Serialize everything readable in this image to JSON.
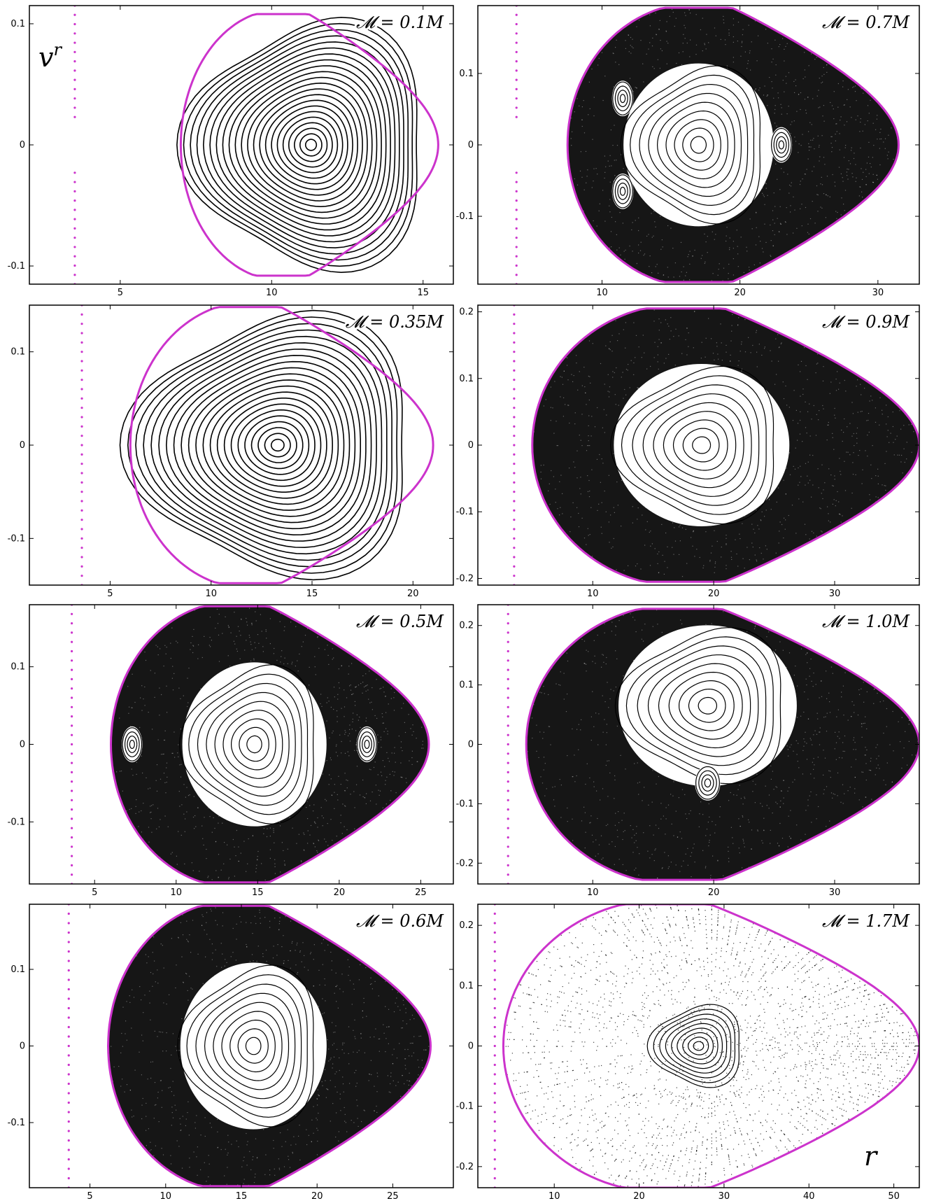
{
  "figure": {
    "y_axis_symbol": "v",
    "y_axis_superscript": "r",
    "x_axis_symbol": "r",
    "colors": {
      "boundary": "#cc33cc",
      "points": "#000000",
      "frame": "#000000"
    }
  },
  "chart_data": [
    {
      "type": "scatter",
      "label": "𝓜 = 0.1M",
      "mass": 0.1,
      "xlim": [
        2.0,
        16.0
      ],
      "ylim": [
        -0.115,
        0.115
      ],
      "xticks": [
        5,
        10,
        15
      ],
      "xtick_labels": [
        "5",
        "10",
        "15"
      ],
      "yticks": [
        -0.1,
        0,
        0.1
      ],
      "ytick_labels": [
        "-0.1",
        "0",
        "0.1"
      ],
      "boundary": {
        "r_min": 7.0,
        "r_max": 15.5,
        "vr_max": 0.108,
        "vr_min": -0.108
      },
      "horizon_dots_r": 3.5,
      "island_centers": [
        [
          11.3,
          0.0
        ]
      ],
      "chaotic": false
    },
    {
      "type": "scatter",
      "label": "𝓜 = 0.7M",
      "mass": 0.7,
      "xlim": [
        1.0,
        33.0
      ],
      "ylim": [
        -0.195,
        0.195
      ],
      "xticks": [
        10,
        20,
        30
      ],
      "xtick_labels": [
        "10",
        "20",
        "30"
      ],
      "yticks": [
        -0.1,
        0,
        0.1
      ],
      "ytick_labels": [
        "-0.1",
        "0",
        "0.1"
      ],
      "boundary": {
        "r_min": 7.5,
        "r_max": 31.5,
        "vr_max": 0.192,
        "vr_min": -0.192
      },
      "horizon_dots_r": 3.8,
      "island_centers": [
        [
          17.0,
          0.0
        ],
        [
          23.0,
          0.0
        ],
        [
          11.5,
          0.065
        ],
        [
          11.5,
          -0.065
        ]
      ],
      "chaotic": true
    },
    {
      "type": "scatter",
      "label": "𝓜 = 0.35M",
      "mass": 0.35,
      "xlim": [
        1.0,
        22.0
      ],
      "ylim": [
        -0.15,
        0.15
      ],
      "xticks": [
        5,
        10,
        15,
        20
      ],
      "xtick_labels": [
        "5",
        "10",
        "15",
        "20"
      ],
      "yticks": [
        -0.1,
        0,
        0.1
      ],
      "ytick_labels": [
        "-0.1",
        "0",
        "0.1"
      ],
      "boundary": {
        "r_min": 6.0,
        "r_max": 21.0,
        "vr_max": 0.148,
        "vr_min": -0.148
      },
      "horizon_dots_r": 3.6,
      "island_centers": [
        [
          13.3,
          0.0
        ]
      ],
      "chaotic": false
    },
    {
      "type": "scatter",
      "label": "𝓜 = 0.9M",
      "mass": 0.9,
      "xlim": [
        0.5,
        37.0
      ],
      "ylim": [
        -0.21,
        0.21
      ],
      "xticks": [
        10,
        20,
        30
      ],
      "xtick_labels": [
        "10",
        "20",
        "30"
      ],
      "yticks": [
        -0.2,
        -0.1,
        0,
        0.1,
        0.2
      ],
      "ytick_labels": [
        "-0.2",
        "-0.1",
        "0",
        "0.1",
        "0.2"
      ],
      "boundary": {
        "r_min": 5.0,
        "r_max": 37.0,
        "vr_max": 0.205,
        "vr_min": -0.205
      },
      "horizon_dots_r": 3.5,
      "island_centers": [
        [
          19.0,
          0.0
        ]
      ],
      "chaotic": true
    },
    {
      "type": "scatter",
      "label": "𝓜 = 0.5M",
      "mass": 0.5,
      "xlim": [
        1.0,
        27.0
      ],
      "ylim": [
        -0.18,
        0.18
      ],
      "xticks": [
        5,
        10,
        15,
        20,
        25
      ],
      "xtick_labels": [
        "5",
        "10",
        "15",
        "20",
        "25"
      ],
      "yticks": [
        -0.1,
        0,
        0.1
      ],
      "ytick_labels": [
        "-0.1",
        "0",
        "0.1"
      ],
      "boundary": {
        "r_min": 6.0,
        "r_max": 25.5,
        "vr_max": 0.178,
        "vr_min": -0.178
      },
      "horizon_dots_r": 3.6,
      "island_centers": [
        [
          14.8,
          0.0
        ],
        [
          21.7,
          0.0
        ],
        [
          7.3,
          0.0
        ]
      ],
      "chaotic": true
    },
    {
      "type": "scatter",
      "label": "𝓜 = 1.0M",
      "mass": 1.0,
      "xlim": [
        0.5,
        37.0
      ],
      "ylim": [
        -0.235,
        0.235
      ],
      "xticks": [
        10,
        20,
        30
      ],
      "xtick_labels": [
        "10",
        "20",
        "30"
      ],
      "yticks": [
        -0.2,
        -0.1,
        0,
        0.1,
        0.2
      ],
      "ytick_labels": [
        "-0.2",
        "-0.1",
        "0",
        "0.1",
        "0.2"
      ],
      "boundary": {
        "r_min": 4.5,
        "r_max": 37.0,
        "vr_max": 0.228,
        "vr_min": -0.228
      },
      "horizon_dots_r": 3.0,
      "island_centers": [
        [
          19.5,
          0.065
        ],
        [
          19.5,
          -0.065
        ]
      ],
      "chaotic": true
    },
    {
      "type": "scatter",
      "label": "𝓜 = 0.6M",
      "mass": 0.6,
      "xlim": [
        1.0,
        29.0
      ],
      "ylim": [
        -0.185,
        0.185
      ],
      "xticks": [
        5,
        10,
        15,
        20,
        25
      ],
      "xtick_labels": [
        "5",
        "10",
        "15",
        "20",
        "25"
      ],
      "yticks": [
        -0.1,
        0,
        0.1
      ],
      "ytick_labels": [
        "-0.1",
        "0",
        "0.1"
      ],
      "boundary": {
        "r_min": 6.2,
        "r_max": 27.5,
        "vr_max": 0.183,
        "vr_min": -0.183
      },
      "horizon_dots_r": 3.6,
      "island_centers": [
        [
          15.8,
          0.0
        ]
      ],
      "chaotic": true
    },
    {
      "type": "scatter",
      "label": "𝓜 = 1.7M",
      "mass": 1.7,
      "xlim": [
        1.0,
        53.0
      ],
      "ylim": [
        -0.235,
        0.235
      ],
      "xticks": [
        10,
        20,
        30,
        40,
        50
      ],
      "xtick_labels": [
        "10",
        "20",
        "30",
        "40",
        "50"
      ],
      "yticks": [
        -0.2,
        -0.1,
        0,
        0.1,
        0.2
      ],
      "ytick_labels": [
        "-0.2",
        "-0.1",
        "0",
        "0.1",
        "0.2"
      ],
      "boundary": {
        "r_min": 4.0,
        "r_max": 53.0,
        "vr_max": 0.235,
        "vr_min": -0.235
      },
      "horizon_dots_r": 3.0,
      "island_centers": [
        [
          27.0,
          0.0
        ]
      ],
      "chaotic": true
    }
  ]
}
